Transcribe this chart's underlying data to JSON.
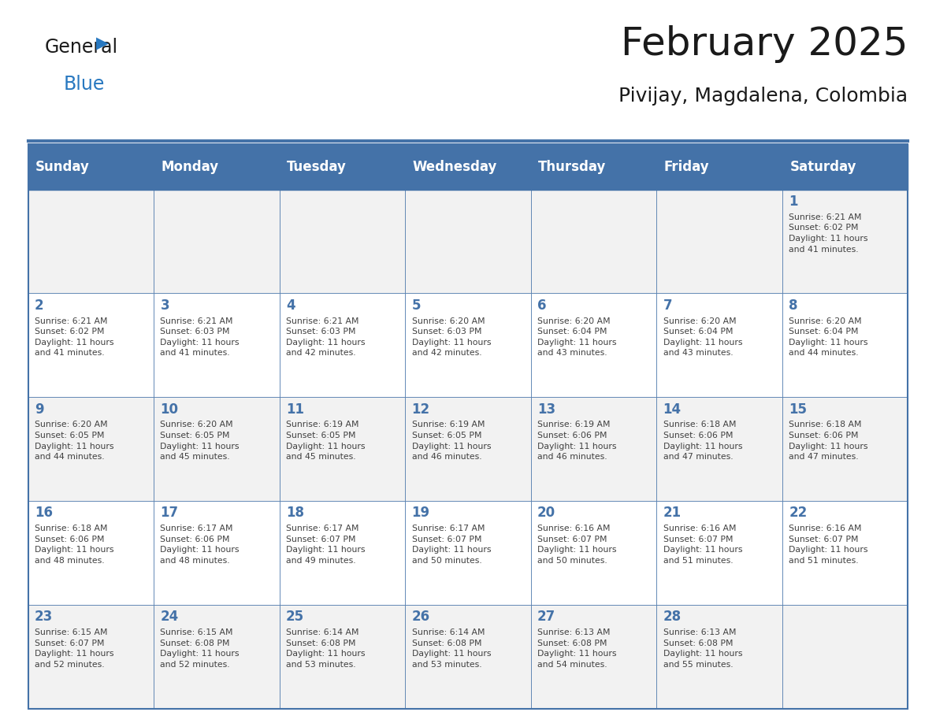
{
  "title": "February 2025",
  "subtitle": "Pivijay, Magdalena, Colombia",
  "days_of_week": [
    "Sunday",
    "Monday",
    "Tuesday",
    "Wednesday",
    "Thursday",
    "Friday",
    "Saturday"
  ],
  "header_bg": "#4472a8",
  "header_text_color": "#ffffff",
  "cell_bg_odd": "#f2f2f2",
  "cell_bg_even": "#ffffff",
  "grid_line_color": "#4472a8",
  "day_number_color": "#4472a8",
  "info_text_color": "#404040",
  "title_color": "#1a1a1a",
  "subtitle_color": "#1a1a1a",
  "general_color": "#1a1a1a",
  "blue_color": "#2878c0",
  "calendar": [
    [
      {
        "day": null,
        "info": ""
      },
      {
        "day": null,
        "info": ""
      },
      {
        "day": null,
        "info": ""
      },
      {
        "day": null,
        "info": ""
      },
      {
        "day": null,
        "info": ""
      },
      {
        "day": null,
        "info": ""
      },
      {
        "day": 1,
        "info": "Sunrise: 6:21 AM\nSunset: 6:02 PM\nDaylight: 11 hours\nand 41 minutes."
      }
    ],
    [
      {
        "day": 2,
        "info": "Sunrise: 6:21 AM\nSunset: 6:02 PM\nDaylight: 11 hours\nand 41 minutes."
      },
      {
        "day": 3,
        "info": "Sunrise: 6:21 AM\nSunset: 6:03 PM\nDaylight: 11 hours\nand 41 minutes."
      },
      {
        "day": 4,
        "info": "Sunrise: 6:21 AM\nSunset: 6:03 PM\nDaylight: 11 hours\nand 42 minutes."
      },
      {
        "day": 5,
        "info": "Sunrise: 6:20 AM\nSunset: 6:03 PM\nDaylight: 11 hours\nand 42 minutes."
      },
      {
        "day": 6,
        "info": "Sunrise: 6:20 AM\nSunset: 6:04 PM\nDaylight: 11 hours\nand 43 minutes."
      },
      {
        "day": 7,
        "info": "Sunrise: 6:20 AM\nSunset: 6:04 PM\nDaylight: 11 hours\nand 43 minutes."
      },
      {
        "day": 8,
        "info": "Sunrise: 6:20 AM\nSunset: 6:04 PM\nDaylight: 11 hours\nand 44 minutes."
      }
    ],
    [
      {
        "day": 9,
        "info": "Sunrise: 6:20 AM\nSunset: 6:05 PM\nDaylight: 11 hours\nand 44 minutes."
      },
      {
        "day": 10,
        "info": "Sunrise: 6:20 AM\nSunset: 6:05 PM\nDaylight: 11 hours\nand 45 minutes."
      },
      {
        "day": 11,
        "info": "Sunrise: 6:19 AM\nSunset: 6:05 PM\nDaylight: 11 hours\nand 45 minutes."
      },
      {
        "day": 12,
        "info": "Sunrise: 6:19 AM\nSunset: 6:05 PM\nDaylight: 11 hours\nand 46 minutes."
      },
      {
        "day": 13,
        "info": "Sunrise: 6:19 AM\nSunset: 6:06 PM\nDaylight: 11 hours\nand 46 minutes."
      },
      {
        "day": 14,
        "info": "Sunrise: 6:18 AM\nSunset: 6:06 PM\nDaylight: 11 hours\nand 47 minutes."
      },
      {
        "day": 15,
        "info": "Sunrise: 6:18 AM\nSunset: 6:06 PM\nDaylight: 11 hours\nand 47 minutes."
      }
    ],
    [
      {
        "day": 16,
        "info": "Sunrise: 6:18 AM\nSunset: 6:06 PM\nDaylight: 11 hours\nand 48 minutes."
      },
      {
        "day": 17,
        "info": "Sunrise: 6:17 AM\nSunset: 6:06 PM\nDaylight: 11 hours\nand 48 minutes."
      },
      {
        "day": 18,
        "info": "Sunrise: 6:17 AM\nSunset: 6:07 PM\nDaylight: 11 hours\nand 49 minutes."
      },
      {
        "day": 19,
        "info": "Sunrise: 6:17 AM\nSunset: 6:07 PM\nDaylight: 11 hours\nand 50 minutes."
      },
      {
        "day": 20,
        "info": "Sunrise: 6:16 AM\nSunset: 6:07 PM\nDaylight: 11 hours\nand 50 minutes."
      },
      {
        "day": 21,
        "info": "Sunrise: 6:16 AM\nSunset: 6:07 PM\nDaylight: 11 hours\nand 51 minutes."
      },
      {
        "day": 22,
        "info": "Sunrise: 6:16 AM\nSunset: 6:07 PM\nDaylight: 11 hours\nand 51 minutes."
      }
    ],
    [
      {
        "day": 23,
        "info": "Sunrise: 6:15 AM\nSunset: 6:07 PM\nDaylight: 11 hours\nand 52 minutes."
      },
      {
        "day": 24,
        "info": "Sunrise: 6:15 AM\nSunset: 6:08 PM\nDaylight: 11 hours\nand 52 minutes."
      },
      {
        "day": 25,
        "info": "Sunrise: 6:14 AM\nSunset: 6:08 PM\nDaylight: 11 hours\nand 53 minutes."
      },
      {
        "day": 26,
        "info": "Sunrise: 6:14 AM\nSunset: 6:08 PM\nDaylight: 11 hours\nand 53 minutes."
      },
      {
        "day": 27,
        "info": "Sunrise: 6:13 AM\nSunset: 6:08 PM\nDaylight: 11 hours\nand 54 minutes."
      },
      {
        "day": 28,
        "info": "Sunrise: 6:13 AM\nSunset: 6:08 PM\nDaylight: 11 hours\nand 55 minutes."
      },
      {
        "day": null,
        "info": ""
      }
    ]
  ]
}
